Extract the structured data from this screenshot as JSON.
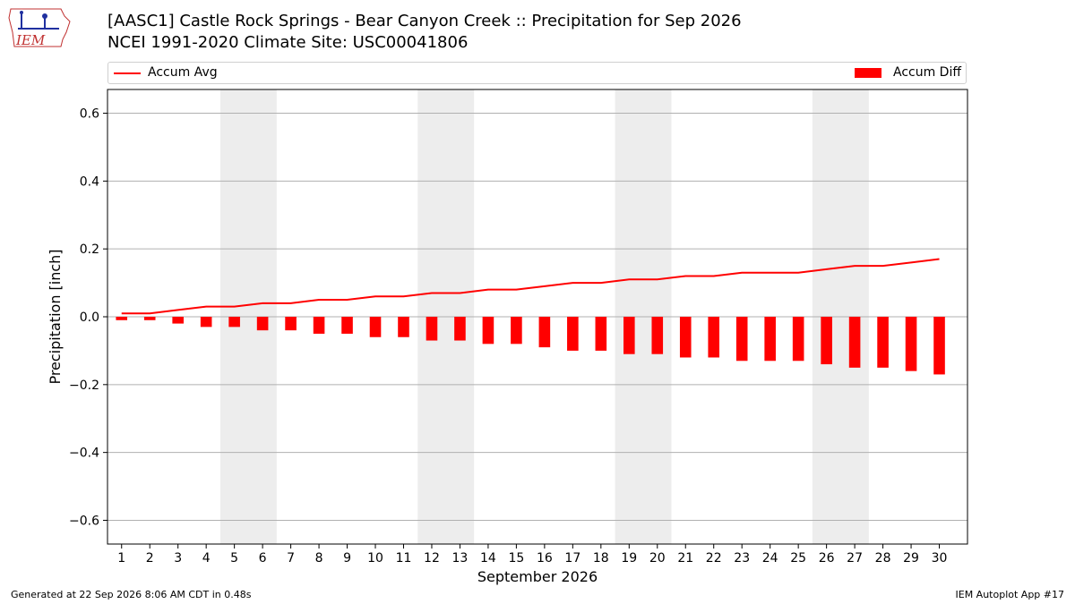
{
  "header": {
    "logo_text": "IEM",
    "title_line1": "[AASC1] Castle Rock Springs - Bear Canyon Creek :: Precipitation for Sep 2026",
    "title_line2": "NCEI 1991-2020 Climate Site: USC00041806"
  },
  "colors": {
    "series": "#ff0000",
    "weekend_shade": "#ededed",
    "grid": "#b0b0b0"
  },
  "chart_data": {
    "type": "bar",
    "xlabel": "September 2026",
    "ylabel": "Precipitation [inch]",
    "ylim": [
      -0.67,
      0.67
    ],
    "yticks": [
      -0.6,
      -0.4,
      -0.2,
      0.0,
      0.2,
      0.4,
      0.6
    ],
    "ytick_labels": [
      "−0.6",
      "−0.4",
      "−0.2",
      "0.0",
      "0.2",
      "0.4",
      "0.6"
    ],
    "grid": "horizontal",
    "legend_placement": "top",
    "categories": [
      "1",
      "2",
      "3",
      "4",
      "5",
      "6",
      "7",
      "8",
      "9",
      "10",
      "11",
      "12",
      "13",
      "14",
      "15",
      "16",
      "17",
      "18",
      "19",
      "20",
      "21",
      "22",
      "23",
      "24",
      "25",
      "26",
      "27",
      "28",
      "29",
      "30"
    ],
    "shaded_weekends": [
      [
        5,
        6
      ],
      [
        12,
        13
      ],
      [
        19,
        20
      ],
      [
        26,
        27
      ]
    ],
    "series": [
      {
        "name": "Accum Avg",
        "type": "line",
        "values": [
          0.01,
          0.01,
          0.02,
          0.03,
          0.03,
          0.04,
          0.04,
          0.05,
          0.05,
          0.06,
          0.06,
          0.07,
          0.07,
          0.08,
          0.08,
          0.09,
          0.1,
          0.1,
          0.11,
          0.11,
          0.12,
          0.12,
          0.13,
          0.13,
          0.13,
          0.14,
          0.15,
          0.15,
          0.16,
          0.17
        ]
      },
      {
        "name": "Accum Diff",
        "type": "bar",
        "values": [
          -0.01,
          -0.01,
          -0.02,
          -0.03,
          -0.03,
          -0.04,
          -0.04,
          -0.05,
          -0.05,
          -0.06,
          -0.06,
          -0.07,
          -0.07,
          -0.08,
          -0.08,
          -0.09,
          -0.1,
          -0.1,
          -0.11,
          -0.11,
          -0.12,
          -0.12,
          -0.13,
          -0.13,
          -0.13,
          -0.14,
          -0.15,
          -0.15,
          -0.16,
          -0.17
        ]
      }
    ]
  },
  "footer": {
    "generated": "Generated at 22 Sep 2026 8:06 AM CDT in 0.48s",
    "app": "IEM Autoplot App #17"
  }
}
